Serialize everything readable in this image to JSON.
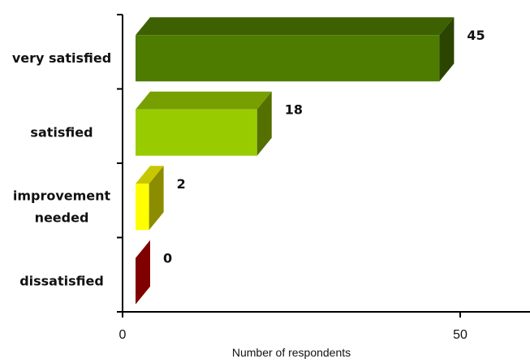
{
  "chart_data": {
    "type": "bar",
    "orientation": "horizontal",
    "title": "",
    "xlabel": "Number of respondents",
    "ylabel": "",
    "xlim": [
      0,
      60
    ],
    "x_ticks": [
      0,
      50
    ],
    "grid": false,
    "legend": "none",
    "categories": [
      {
        "label": [
          "very satisfied"
        ],
        "value": 45,
        "value_label": "45",
        "color": "#4e7c00"
      },
      {
        "label": [
          "satisfied"
        ],
        "value": 18,
        "value_label": "18",
        "color": "#99cc00"
      },
      {
        "label": [
          "improvement",
          "needed"
        ],
        "value": 2,
        "value_label": "2",
        "color": "#ffff00"
      },
      {
        "label": [
          "dissatisfied"
        ],
        "value": 0,
        "value_label": "0",
        "color": "#800000"
      }
    ]
  }
}
